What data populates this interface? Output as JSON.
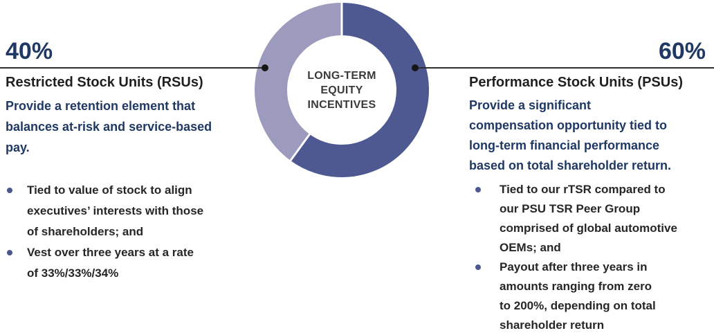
{
  "chart_data": {
    "type": "pie",
    "donut": true,
    "title": "LONG-TERM EQUITY INCENTIVES",
    "center_lines": [
      "LONG-TERM",
      "EQUITY",
      "INCENTIVES"
    ],
    "start_angle": "top",
    "direction": "clockwise",
    "segments": [
      {
        "label": "Performance Stock Units (PSUs)",
        "value": 60,
        "color": "#4D5990"
      },
      {
        "label": "Restricted Stock Units (RSUs)",
        "value": 40,
        "color": "#9C9BBE"
      }
    ]
  },
  "left_panel": {
    "percent": "40%",
    "title": "Restricted Stock Units (RSUs)",
    "description": "Provide a retention element that balances at-risk and service-based pay.",
    "description_lines": [
      "Provide a retention element that",
      "balances at-risk and service-based",
      "pay."
    ],
    "bullets": [
      [
        "Tied to value of stock to align",
        "executives’ interests with those",
        "of shareholders; and"
      ],
      [
        "Vest over three years at a rate",
        "of 33%/33%/34%"
      ]
    ]
  },
  "right_panel": {
    "percent": "60%",
    "title": "Performance Stock Units (PSUs)",
    "description": "Provide a significant compensation opportunity tied to long-term financial performance based on total shareholder return.",
    "description_lines": [
      "Provide a significant",
      "compensation opportunity tied to",
      "long-term financial performance",
      "based on total shareholder return."
    ],
    "bullets": [
      [
        "Tied to our rTSR compared to",
        "our PSU TSR Peer Group",
        "comprised of global automotive",
        "OEMs; and"
      ],
      [
        "Payout after three years in",
        "amounts ranging from zero",
        "to 200%, depending on total",
        "shareholder return"
      ]
    ]
  },
  "colors": {
    "accent_navy": "#1F3864",
    "segment_dark": "#4D5990",
    "segment_light": "#9C9BBE",
    "bullet_dot": "#4A5890",
    "text_dark": "#262626",
    "connector": "#2E2E2E"
  }
}
